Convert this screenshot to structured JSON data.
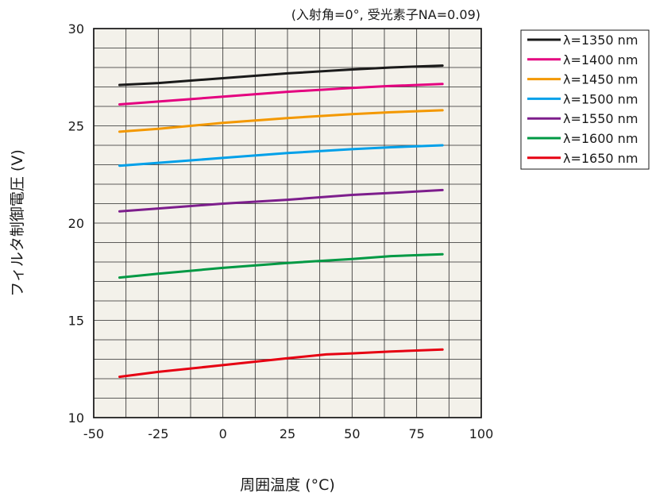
{
  "chart_data": {
    "type": "line",
    "subtitle": "(入射角=0°, 受光素子NA=0.09)",
    "xlabel": "周囲温度 (°C)",
    "ylabel": "フィルタ制御電圧 (V)",
    "xlim": [
      -50,
      100
    ],
    "ylim": [
      10,
      30
    ],
    "x_ticks": [
      -50,
      -25,
      0,
      25,
      50,
      75,
      100
    ],
    "y_ticks": [
      10,
      15,
      20,
      25,
      30
    ],
    "grid": true,
    "legend_position": "top-right outside",
    "series": [
      {
        "name": "λ=1350 nm",
        "color": "#1a1a1a",
        "points": [
          [
            -40,
            27.1
          ],
          [
            -25,
            27.2
          ],
          [
            0,
            27.45
          ],
          [
            25,
            27.7
          ],
          [
            50,
            27.9
          ],
          [
            65,
            28.0
          ],
          [
            85,
            28.1
          ]
        ]
      },
      {
        "name": "λ=1400 nm",
        "color": "#e4007f",
        "points": [
          [
            -40,
            26.1
          ],
          [
            -25,
            26.25
          ],
          [
            0,
            26.5
          ],
          [
            25,
            26.75
          ],
          [
            50,
            26.95
          ],
          [
            65,
            27.05
          ],
          [
            85,
            27.15
          ]
        ]
      },
      {
        "name": "λ=1450 nm",
        "color": "#f39800",
        "points": [
          [
            -40,
            24.7
          ],
          [
            -25,
            24.85
          ],
          [
            0,
            25.15
          ],
          [
            25,
            25.4
          ],
          [
            50,
            25.6
          ],
          [
            65,
            25.7
          ],
          [
            85,
            25.8
          ]
        ]
      },
      {
        "name": "λ=1500 nm",
        "color": "#00a0e9",
        "points": [
          [
            -40,
            22.95
          ],
          [
            -25,
            23.1
          ],
          [
            0,
            23.35
          ],
          [
            25,
            23.6
          ],
          [
            50,
            23.8
          ],
          [
            65,
            23.9
          ],
          [
            85,
            24.0
          ]
        ]
      },
      {
        "name": "λ=1550 nm",
        "color": "#7d1e8c",
        "points": [
          [
            -40,
            20.6
          ],
          [
            -25,
            20.75
          ],
          [
            0,
            21.0
          ],
          [
            25,
            21.2
          ],
          [
            50,
            21.45
          ],
          [
            65,
            21.55
          ],
          [
            85,
            21.7
          ]
        ]
      },
      {
        "name": "λ=1600 nm",
        "color": "#009944",
        "points": [
          [
            -40,
            17.2
          ],
          [
            -25,
            17.4
          ],
          [
            0,
            17.7
          ],
          [
            25,
            17.95
          ],
          [
            50,
            18.15
          ],
          [
            65,
            18.3
          ],
          [
            85,
            18.4
          ]
        ]
      },
      {
        "name": "λ=1650 nm",
        "color": "#e60012",
        "points": [
          [
            -40,
            12.1
          ],
          [
            -25,
            12.35
          ],
          [
            0,
            12.7
          ],
          [
            25,
            13.05
          ],
          [
            40,
            13.25
          ],
          [
            50,
            13.3
          ],
          [
            65,
            13.4
          ],
          [
            85,
            13.5
          ]
        ]
      }
    ]
  }
}
